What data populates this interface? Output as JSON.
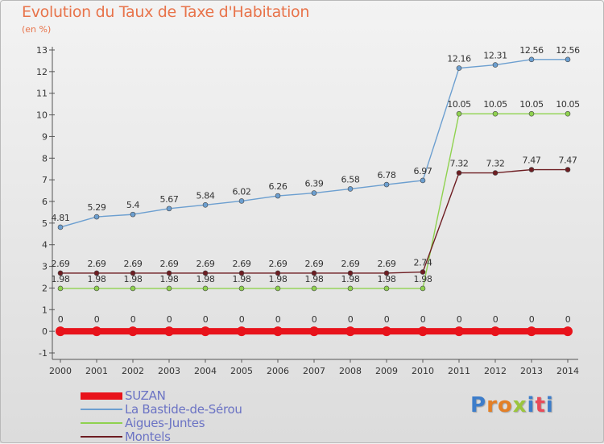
{
  "title": "Evolution du Taux de Taxe d'Habitation",
  "unit": "(en %)",
  "logo": {
    "text": "Proxiti",
    "colors": [
      "#3d7dca",
      "#e37f26",
      "#e37f26",
      "#9bc53d",
      "#3d7dca",
      "#e84b5a",
      "#3d7dca"
    ]
  },
  "chart_data": {
    "type": "line",
    "title": "Evolution du Taux de Taxe d'Habitation",
    "ylabel": "(en %)",
    "xlabel": "",
    "x": [
      "2000",
      "2001",
      "2002",
      "2003",
      "2004",
      "2005",
      "2006",
      "2007",
      "2008",
      "2009",
      "2010",
      "2011",
      "2012",
      "2013",
      "2014"
    ],
    "yticks": [
      "-1",
      "0",
      "1",
      "2",
      "3",
      "4",
      "5",
      "6",
      "7",
      "8",
      "9",
      "10",
      "11",
      "12",
      "13"
    ],
    "ylim": [
      -1,
      13
    ],
    "grid": false,
    "legend_position": "bottom",
    "series": [
      {
        "name": "SUZAN",
        "color": "#e8131b",
        "values": [
          0,
          0,
          0,
          0,
          0,
          0,
          0,
          0,
          0,
          0,
          0,
          0,
          0,
          0,
          0
        ],
        "labels": [
          "0",
          "0",
          "0",
          "0",
          "0",
          "0",
          "0",
          "0",
          "0",
          "0",
          "0",
          "0",
          "0",
          "0",
          "0"
        ]
      },
      {
        "name": "La Bastide-de-Sérou",
        "color": "#6c9fd0",
        "values": [
          4.81,
          5.29,
          5.4,
          5.67,
          5.84,
          6.02,
          6.26,
          6.39,
          6.58,
          6.78,
          6.97,
          12.16,
          12.31,
          12.56,
          12.56
        ],
        "labels": [
          "4.81",
          "5.29",
          "5.4",
          "5.67",
          "5.84",
          "6.02",
          "6.26",
          "6.39",
          "6.58",
          "6.78",
          "6.97",
          "12.16",
          "12.31",
          "12.56",
          "12.56"
        ]
      },
      {
        "name": "Aigues-Juntes",
        "color": "#8fd24f",
        "values": [
          1.98,
          1.98,
          1.98,
          1.98,
          1.98,
          1.98,
          1.98,
          1.98,
          1.98,
          1.98,
          1.98,
          10.05,
          10.05,
          10.05,
          10.05
        ],
        "labels": [
          "1.98",
          "1.98",
          "1.98",
          "1.98",
          "1.98",
          "1.98",
          "1.98",
          "1.98",
          "1.98",
          "1.98",
          "1.98",
          "10.05",
          "10.05",
          "10.05",
          "10.05"
        ]
      },
      {
        "name": "Montels",
        "color": "#6e1d22",
        "values": [
          2.69,
          2.69,
          2.69,
          2.69,
          2.69,
          2.69,
          2.69,
          2.69,
          2.69,
          2.69,
          2.74,
          7.32,
          7.32,
          7.47,
          7.47
        ],
        "labels": [
          "2.69",
          "2.69",
          "2.69",
          "2.69",
          "2.69",
          "2.69",
          "2.69",
          "2.69",
          "2.69",
          "2.69",
          "2.74",
          "7.32",
          "7.32",
          "7.47",
          "7.47"
        ]
      }
    ]
  }
}
